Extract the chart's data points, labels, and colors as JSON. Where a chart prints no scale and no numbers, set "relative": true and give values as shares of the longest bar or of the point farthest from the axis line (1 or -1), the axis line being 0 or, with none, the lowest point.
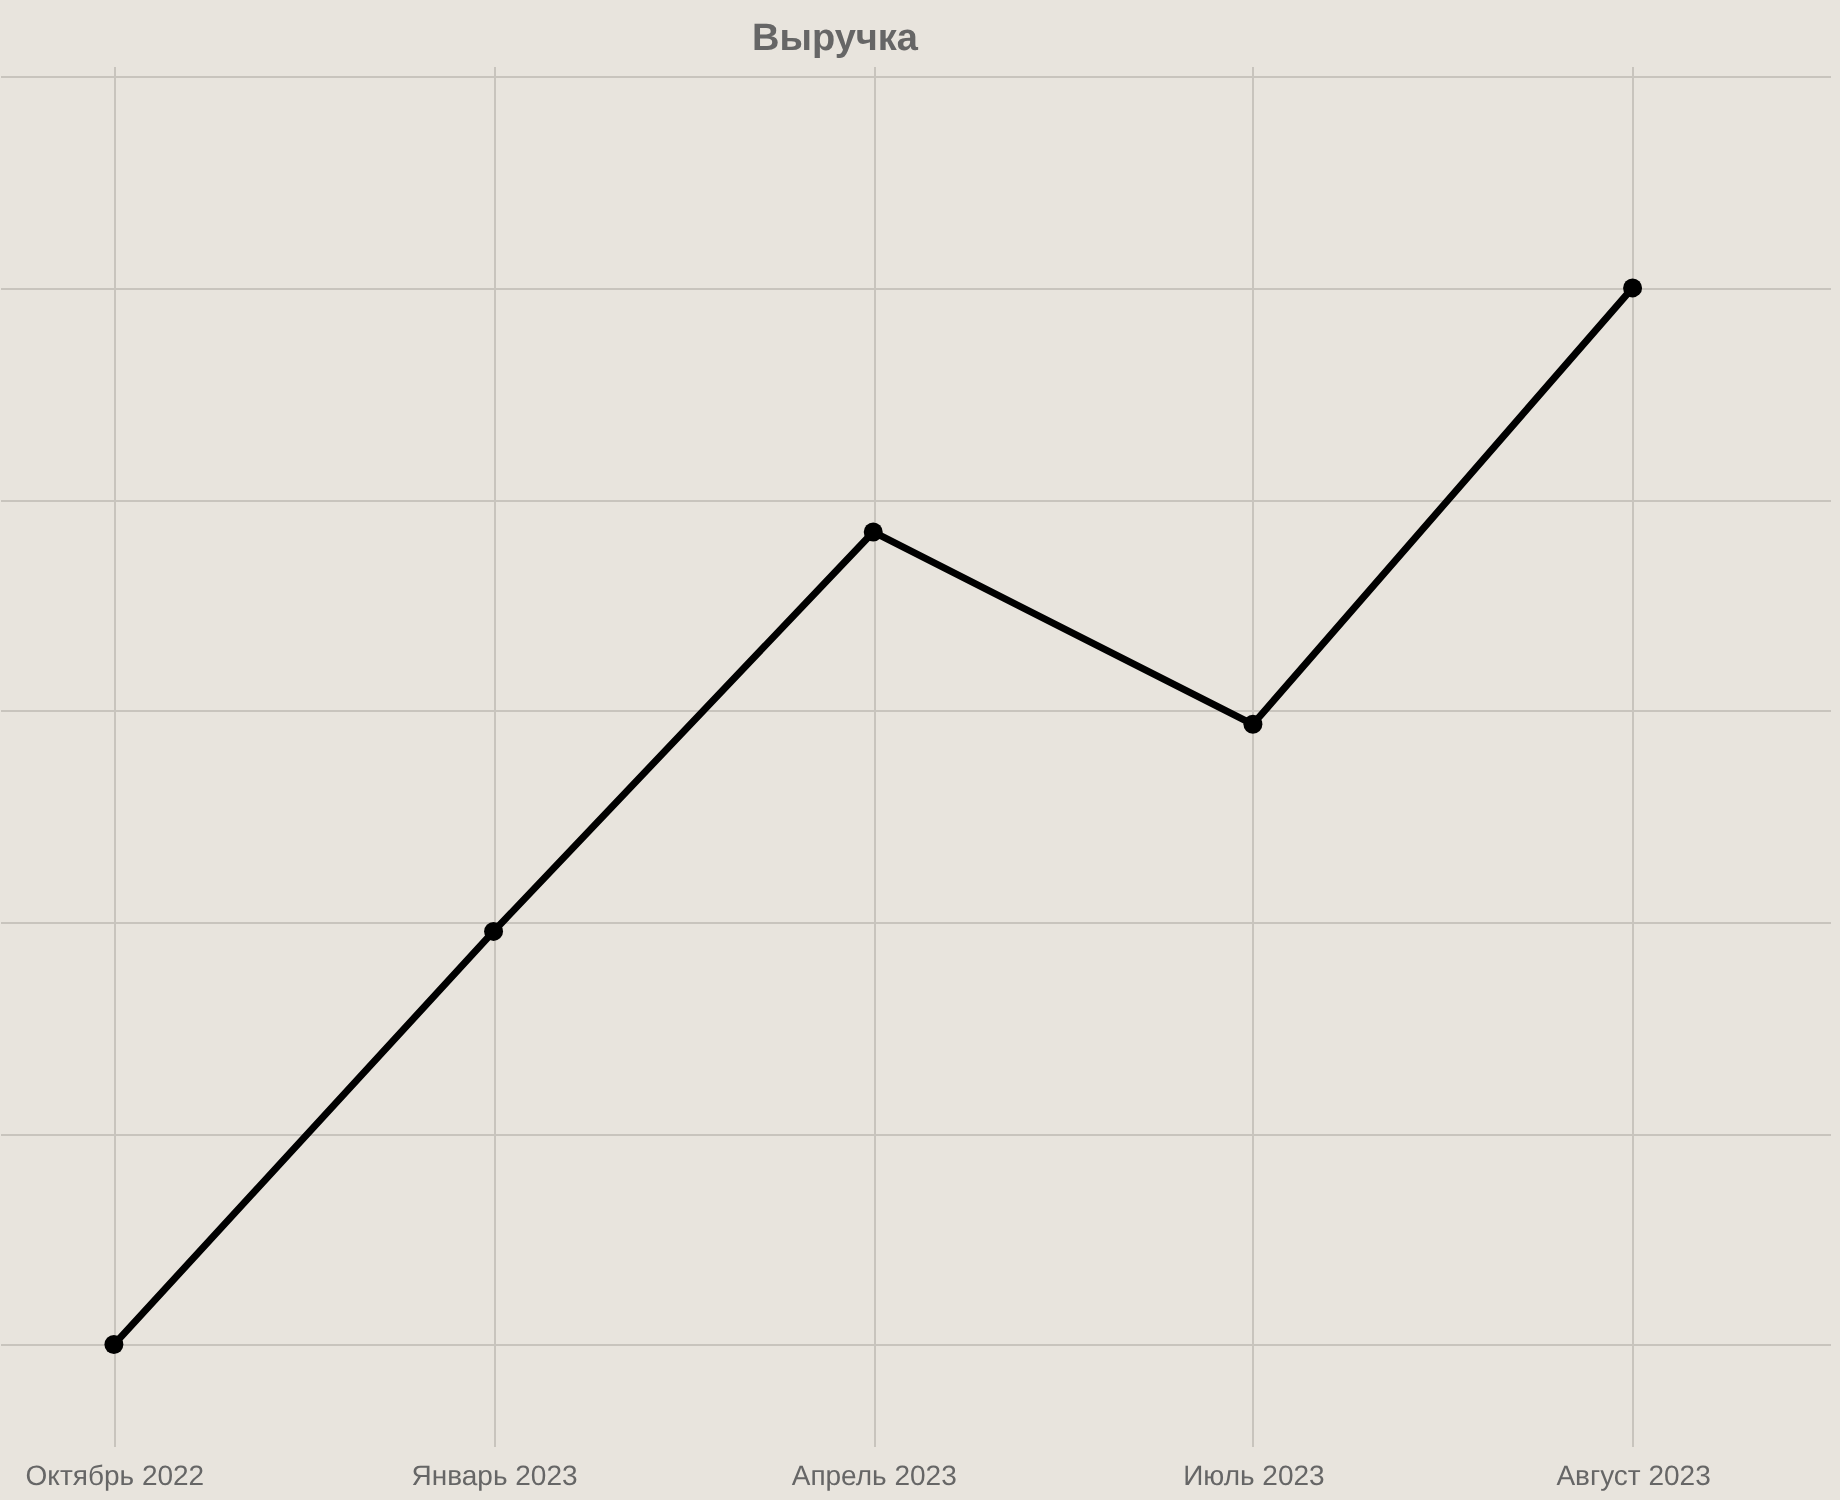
{
  "chart_data": {
    "type": "line",
    "title": "Выручка",
    "relative": true,
    "categories": [
      "Октябрь 2022",
      "Январь 2023",
      "Апрель 2023",
      "Июль 2023",
      "Август 2023"
    ],
    "series": [
      {
        "color": "#000000",
        "values": [
          0,
          0.391,
          0.769,
          0.587,
          1
        ]
      }
    ],
    "grid": true,
    "marker": "circle",
    "line_style": "solid"
  }
}
